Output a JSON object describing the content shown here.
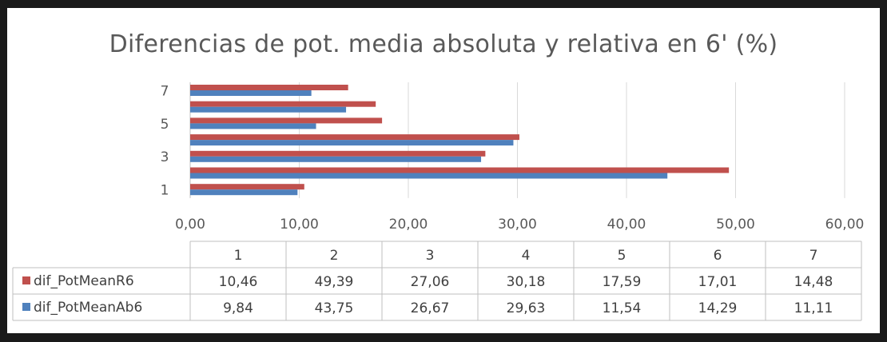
{
  "chart_data": {
    "type": "bar",
    "orientation": "horizontal",
    "title": "Diferencias de pot. media absoluta y relativa en 6' (%)",
    "categories": [
      "1",
      "2",
      "3",
      "4",
      "5",
      "6",
      "7"
    ],
    "y_tick_labels": [
      "1",
      "3",
      "5",
      "7"
    ],
    "x_tick_labels": [
      "0,00",
      "10,00",
      "20,00",
      "30,00",
      "40,00",
      "50,00",
      "60,00"
    ],
    "xlim": [
      0,
      60
    ],
    "grid": true,
    "legend": "data-table",
    "series": [
      {
        "name": "dif_PotMeanR6",
        "color": "#c0504d",
        "values": [
          10.46,
          49.39,
          27.06,
          30.18,
          17.59,
          17.01,
          14.48
        ],
        "labels": [
          "10,46",
          "49,39",
          "27,06",
          "30,18",
          "17,59",
          "17,01",
          "14,48"
        ]
      },
      {
        "name": "dif_PotMeanAb6",
        "color": "#4f81bd",
        "values": [
          9.84,
          43.75,
          26.67,
          29.63,
          11.54,
          14.29,
          11.11
        ],
        "labels": [
          "9,84",
          "43,75",
          "26,67",
          "29,63",
          "11,54",
          "14,29",
          "11,11"
        ]
      }
    ]
  }
}
